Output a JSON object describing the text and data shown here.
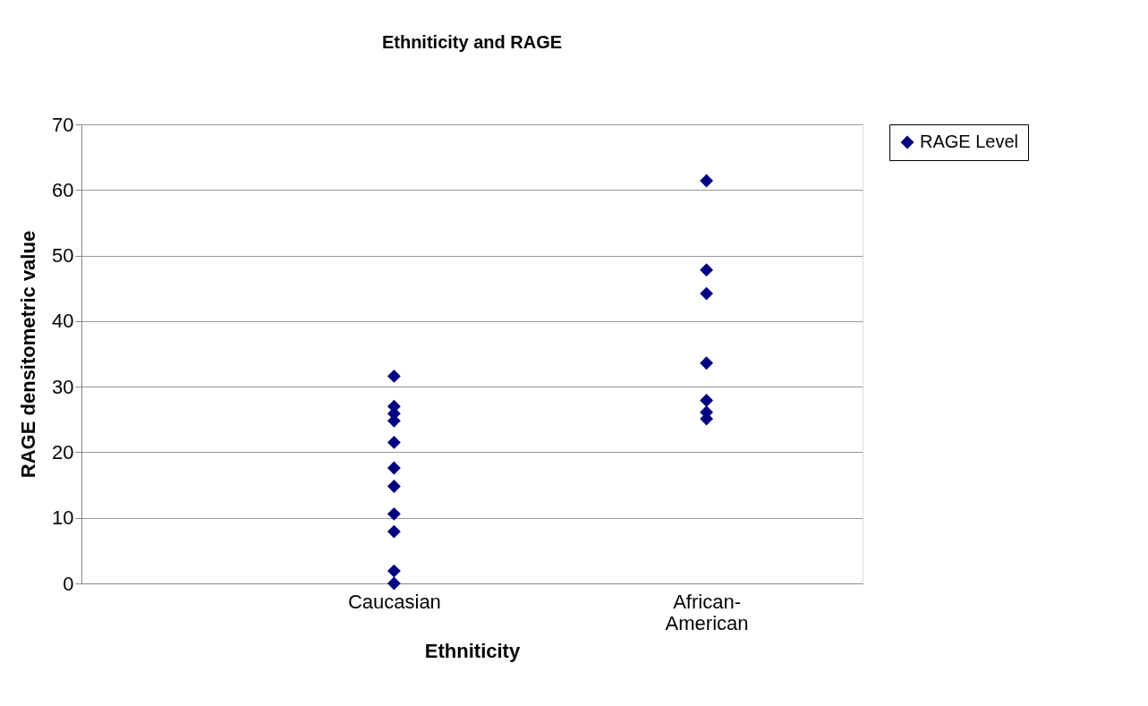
{
  "chart_data": {
    "type": "scatter",
    "title": "Ethniticity and RAGE",
    "xlabel": "Ethniticity",
    "ylabel": "RAGE densitometric value",
    "categories": [
      "Caucasian",
      "African-American"
    ],
    "series": [
      {
        "name": "RAGE Level",
        "color": "#000080",
        "x": [
          "Caucasian",
          "Caucasian",
          "Caucasian",
          "Caucasian",
          "Caucasian",
          "Caucasian",
          "Caucasian",
          "Caucasian",
          "Caucasian",
          "Caucasian",
          "Caucasian",
          "African-American",
          "African-American",
          "African-American",
          "African-American",
          "African-American",
          "African-American",
          "African-American"
        ],
        "values": [
          31.6,
          27.0,
          25.9,
          24.8,
          21.5,
          17.6,
          14.8,
          10.6,
          7.9,
          1.9,
          0.0,
          61.4,
          47.8,
          44.2,
          33.6,
          27.9,
          26.1,
          25.1
        ]
      }
    ],
    "ylim": [
      0,
      70
    ],
    "yticks": [
      0,
      10,
      20,
      30,
      40,
      50,
      60,
      70
    ],
    "grid": "y",
    "legend": "right",
    "marker": "diamond"
  }
}
